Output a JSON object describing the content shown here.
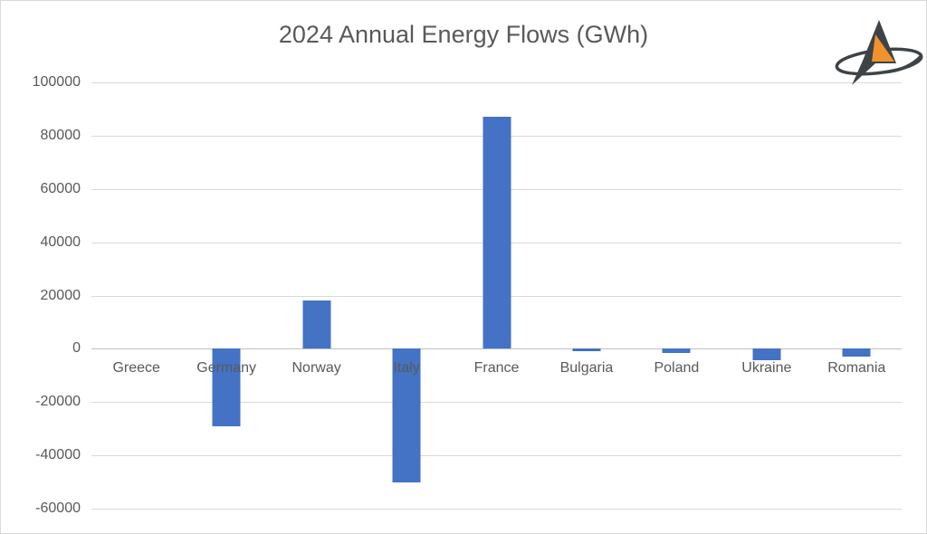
{
  "page": {
    "background": "#ffffff",
    "border_color": "#d9d9d9"
  },
  "header": {
    "title_color": "#595959"
  },
  "logo": {
    "name": "arrow-compass-logo",
    "colors": {
      "dark": "#3e4347",
      "orange": "#f0922e"
    }
  },
  "chart_data": {
    "type": "bar",
    "title": "2024 Annual Energy Flows (GWh)",
    "categories": [
      "Greece",
      "Germany",
      "Norway",
      "Italy",
      "France",
      "Bulgaria",
      "Poland",
      "Ukraine",
      "Romania"
    ],
    "values": [
      0,
      -29000,
      18000,
      -50000,
      87000,
      -800,
      -1700,
      -4400,
      -3000
    ],
    "xlabel": "",
    "ylabel": "",
    "ylim": [
      -60000,
      100000
    ],
    "yticks": [
      100000,
      80000,
      60000,
      40000,
      20000,
      0,
      -20000,
      -40000,
      -60000
    ],
    "grid": true,
    "legend": false,
    "bar_color": "#4472C4",
    "gridline_color": "#D9D9D9",
    "axis_line_color": "#BFBFBF",
    "label_color": "#595959"
  }
}
